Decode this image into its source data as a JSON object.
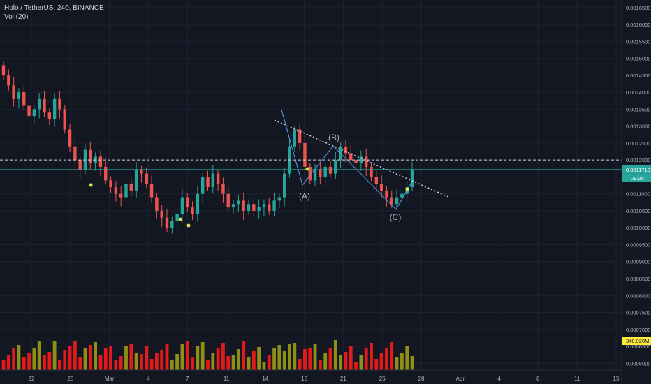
{
  "header": {
    "title": "Holo / TetherUS, 240, BINANCE",
    "indicator": "Vol (20)"
  },
  "price_axis": {
    "labels": [
      "0.0016500",
      "0.0016000",
      "0.0015500",
      "0.0015000",
      "0.0014500",
      "0.0014000",
      "0.0013500",
      "0.0013000",
      "0.0012500",
      "0.0012000",
      "0.0011718",
      "0.0011000",
      "0.0010500",
      "0.0010000",
      "0.0009500",
      "0.0009000",
      "0.0008500",
      "0.0008000",
      "0.0007500",
      "0.0007000",
      "0.0006500",
      "0.0006000"
    ],
    "current_price": "0.0011718",
    "countdown": "09:20",
    "volume_tag": "348.928M"
  },
  "time_axis": {
    "labels": [
      "22",
      "25",
      "Mar",
      "4",
      "7",
      "11",
      "14",
      "18",
      "21",
      "25",
      "28",
      "Apr",
      "4",
      "8",
      "11",
      "15"
    ]
  },
  "annotations": {
    "wave_a": "(A)",
    "wave_b": "(B)",
    "wave_c": "(C)"
  },
  "colors": {
    "background": "#131722",
    "grid": "#1e2230",
    "up": "#26a69a",
    "down": "#ef5350",
    "volume_up": "#8f8f16",
    "volume_down": "#e31a1a",
    "horizontal_line": "#26a69a",
    "price_tag": "#26a69a",
    "volume_tag": "#ffeb3b"
  },
  "chart_data": {
    "type": "candlestick",
    "symbol": "Holo / TetherUS",
    "interval": "240",
    "exchange": "BINANCE",
    "ylim": [
      0.00058,
      0.00166
    ],
    "current_price": 0.0011718,
    "horizontal_levels": [
      0.0012,
      0.0011718
    ],
    "series": [
      {
        "name": "Price",
        "close": [
          0.00145,
          0.00142,
          0.00138,
          0.0014,
          0.00136,
          0.00133,
          0.00135,
          0.00138,
          0.00134,
          0.00132,
          0.00138,
          0.00135,
          0.00129,
          0.00124,
          0.0012,
          0.00117,
          0.00123,
          0.00119,
          0.00121,
          0.00118,
          0.00114,
          0.00112,
          0.0011,
          0.00109,
          0.00113,
          0.00111,
          0.00117,
          0.00116,
          0.00113,
          0.00109,
          0.00105,
          0.00103,
          0.001,
          0.00102,
          0.00104,
          0.00109,
          0.00106,
          0.00104,
          0.0011,
          0.00115,
          0.00112,
          0.00116,
          0.00113,
          0.0011,
          0.00106,
          0.00107,
          0.00108,
          0.00105,
          0.00107,
          0.00105,
          0.00106,
          0.00107,
          0.00105,
          0.00108,
          0.00109,
          0.00116,
          0.00124,
          0.00129,
          0.00125,
          0.00118,
          0.00114,
          0.00117,
          0.00115,
          0.00118,
          0.00116,
          0.0012,
          0.00124,
          0.00122,
          0.0012,
          0.00119,
          0.00121,
          0.00118,
          0.00115,
          0.00113,
          0.00111,
          0.00109,
          0.00107,
          0.00109,
          0.0011,
          0.00112,
          0.00117
        ]
      }
    ]
  }
}
